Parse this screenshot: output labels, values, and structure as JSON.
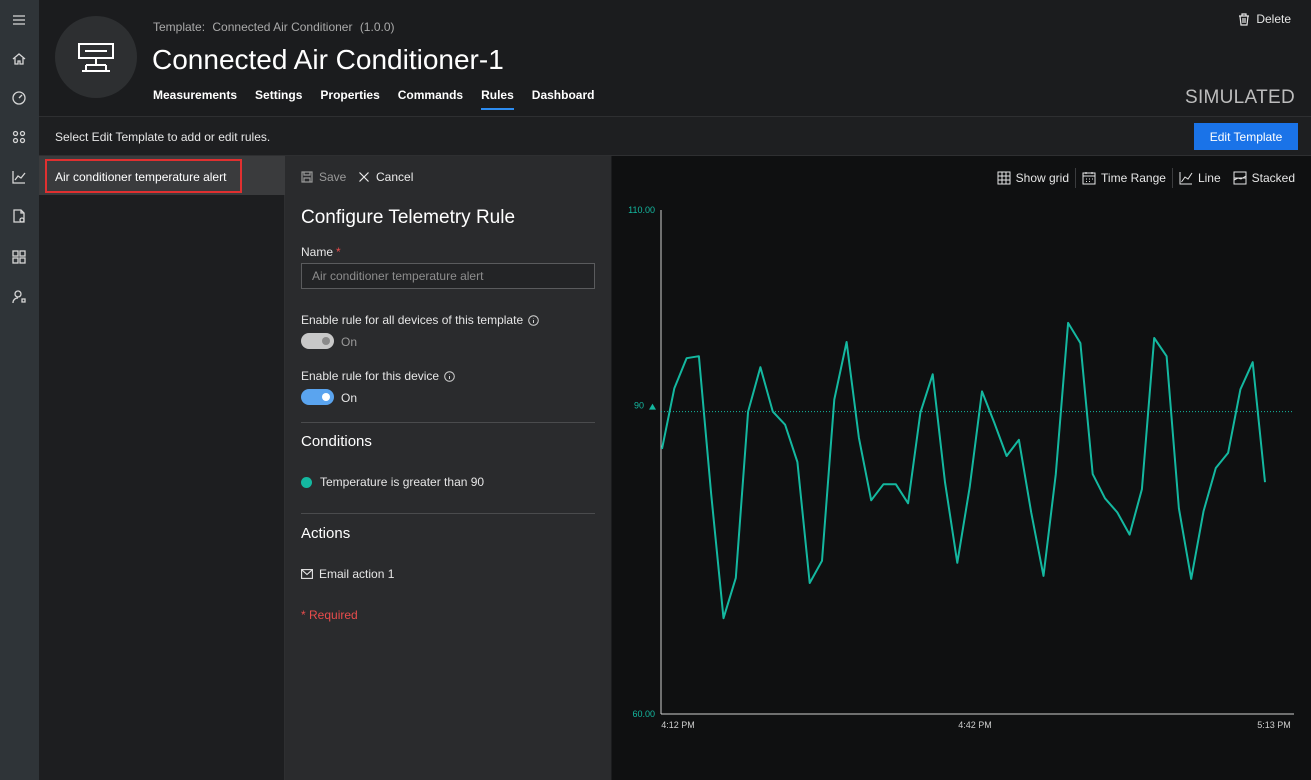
{
  "rail": {
    "items": [
      "hamburger-icon",
      "home-icon",
      "gauge-icon",
      "devices-icon",
      "analytics-icon",
      "jobs-icon",
      "apps-icon",
      "admin-icon"
    ]
  },
  "header": {
    "template_prefix": "Template:",
    "template_name": "Connected Air Conditioner",
    "template_version": "(1.0.0)",
    "device_title": "Connected Air Conditioner-1",
    "tabs": [
      {
        "label": "Measurements"
      },
      {
        "label": "Settings"
      },
      {
        "label": "Properties"
      },
      {
        "label": "Commands"
      },
      {
        "label": "Rules"
      },
      {
        "label": "Dashboard"
      }
    ],
    "active_tab": "Rules",
    "delete_label": "Delete",
    "status": "SIMULATED"
  },
  "infobar": {
    "message": "Select Edit Template to add or edit rules.",
    "edit_template_label": "Edit Template"
  },
  "rules_list": {
    "items": [
      {
        "label": "Air conditioner temperature alert"
      }
    ]
  },
  "config": {
    "save_label": "Save",
    "cancel_label": "Cancel",
    "title": "Configure Telemetry Rule",
    "name_label": "Name",
    "name_required_mark": "*",
    "name_placeholder": "Air conditioner temperature alert",
    "enable_all_label": "Enable rule for all devices of this template",
    "enable_all_state": "On",
    "enable_device_label": "Enable rule for this device",
    "enable_device_state": "On",
    "conditions_heading": "Conditions",
    "condition_text": "Temperature is greater than 90",
    "actions_heading": "Actions",
    "action_text": "Email action 1",
    "required_note": "* Required"
  },
  "chart_toolbar": {
    "show_grid": "Show grid",
    "time_range": "Time Range",
    "line": "Line",
    "stacked": "Stacked"
  },
  "colors": {
    "accent": "#1a73e8",
    "series": "#14b8a0",
    "highlight": "#e03030"
  },
  "chart_data": {
    "type": "line",
    "ylim": [
      60,
      110
    ],
    "y_tick_labels": [
      "110.00",
      "60.00"
    ],
    "threshold": {
      "value": 90,
      "label": "90"
    },
    "x_tick_labels": [
      "4:12 PM",
      "4:42 PM",
      "5:13 PM"
    ],
    "series": [
      {
        "values": [
          86.3,
          92.3,
          95.3,
          95.5,
          81.8,
          69.5,
          73.5,
          90.0,
          94.4,
          90.0,
          88.7,
          85.0,
          73.0,
          75.2,
          91.2,
          96.9,
          87.4,
          81.2,
          82.8,
          82.8,
          80.9,
          89.9,
          93.7,
          83.0,
          75.0,
          82.5,
          92.0,
          88.9,
          85.6,
          87.2,
          80.0,
          73.7,
          83.8,
          98.8,
          96.8,
          83.8,
          81.4,
          80.0,
          77.8,
          82.3,
          97.3,
          95.5,
          80.4,
          73.4,
          80.1,
          84.4,
          85.9,
          92.2,
          94.9,
          83.0
        ]
      }
    ],
    "grid": false
  }
}
